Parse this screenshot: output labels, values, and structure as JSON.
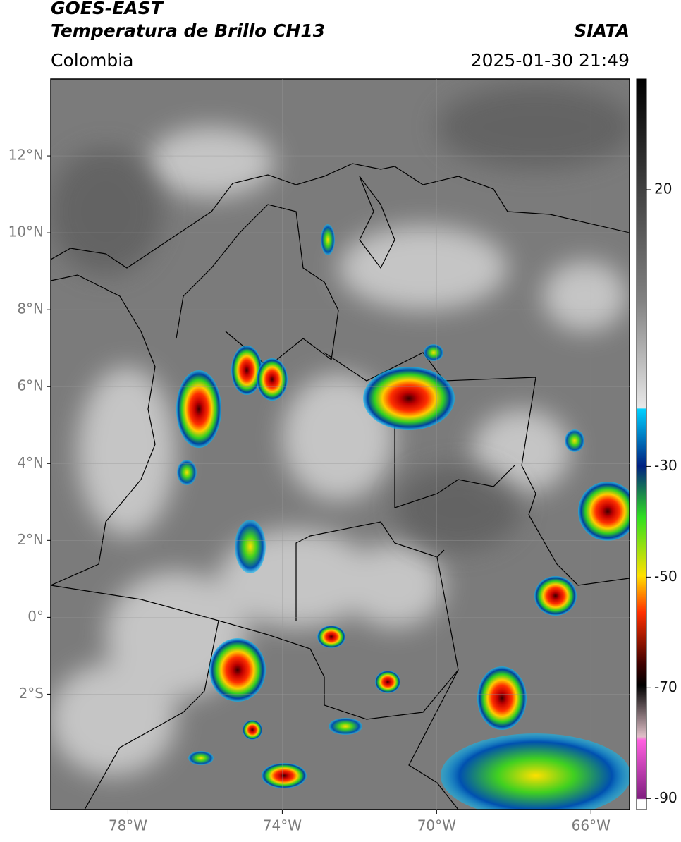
{
  "header": {
    "title": "GOES-EAST",
    "subtitle": "Temperatura de Brillo CH13",
    "region": "Colombia",
    "source": "SIATA",
    "timestamp": "2025-01-30 21:49"
  },
  "map": {
    "lonlim": [
      -80,
      -65
    ],
    "latlim": [
      -5,
      14
    ],
    "lon_ticks": [
      {
        "value": -78,
        "label": "78°W"
      },
      {
        "value": -74,
        "label": "74°W"
      },
      {
        "value": -70,
        "label": "70°W"
      },
      {
        "value": -66,
        "label": "66°W"
      }
    ],
    "lat_ticks": [
      {
        "value": 12,
        "label": "12°N"
      },
      {
        "value": 10,
        "label": "10°N"
      },
      {
        "value": 8,
        "label": "8°N"
      },
      {
        "value": 6,
        "label": "6°N"
      },
      {
        "value": 4,
        "label": "4°N"
      },
      {
        "value": 2,
        "label": "2°N"
      },
      {
        "value": 0,
        "label": "0°"
      },
      {
        "value": -2,
        "label": "2°S"
      }
    ],
    "grid": true
  },
  "colorbar": {
    "lim": [
      -92,
      40
    ],
    "ticks": [
      20,
      -30,
      -50,
      -70,
      -90
    ]
  }
}
